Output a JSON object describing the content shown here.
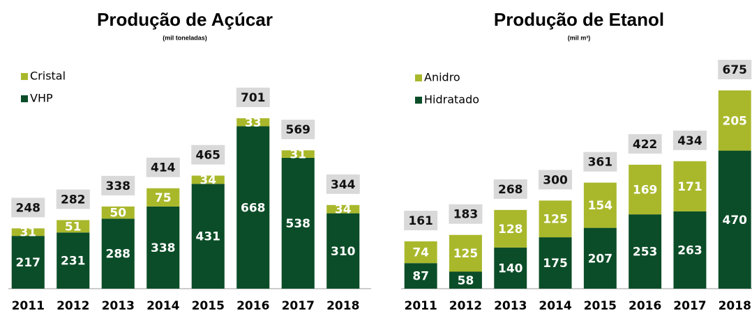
{
  "chart_data": [
    {
      "type": "stacked-bar",
      "title": "Produção de Açúcar",
      "subtitle": "(mil toneladas)",
      "categories": [
        "2011",
        "2012",
        "2013",
        "2014",
        "2015",
        "2016",
        "2017",
        "2018"
      ],
      "series": [
        {
          "name": "VHP",
          "color": "#0b4d28",
          "values": [
            217,
            231,
            288,
            338,
            431,
            668,
            538,
            310
          ]
        },
        {
          "name": "Cristal",
          "color": "#a9b82b",
          "values": [
            31,
            51,
            50,
            75,
            34,
            33,
            31,
            34
          ]
        }
      ],
      "totals": [
        248,
        282,
        338,
        414,
        465,
        701,
        569,
        344
      ]
    },
    {
      "type": "stacked-bar",
      "title": "Produção de Etanol",
      "subtitle": "(mil m³)",
      "categories": [
        "2011",
        "2012",
        "2013",
        "2014",
        "2015",
        "2016",
        "2017",
        "2018"
      ],
      "series": [
        {
          "name": "Hidratado",
          "color": "#0b4d28",
          "values": [
            87,
            58,
            140,
            175,
            207,
            253,
            263,
            470
          ]
        },
        {
          "name": "Anidro",
          "color": "#a9b82b",
          "values": [
            74,
            125,
            128,
            125,
            154,
            169,
            171,
            205
          ]
        }
      ],
      "totals": [
        161,
        183,
        268,
        300,
        361,
        422,
        434,
        675
      ]
    }
  ]
}
